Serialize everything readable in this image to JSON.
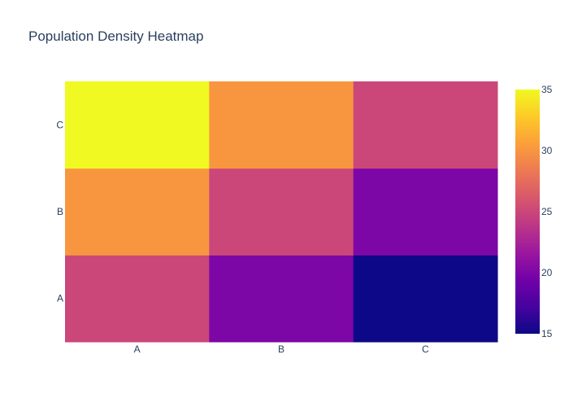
{
  "chart_data": {
    "type": "heatmap",
    "title": "Population Density Heatmap",
    "xlabel": "",
    "ylabel": "",
    "x": [
      "A",
      "B",
      "C"
    ],
    "y": [
      "A",
      "B",
      "C"
    ],
    "z": [
      [
        25,
        20,
        15
      ],
      [
        30,
        25,
        20
      ],
      [
        35,
        30,
        25
      ]
    ],
    "colorscale": [
      "#0d0887",
      "#46039f",
      "#7201a8",
      "#9c179e",
      "#bd3786",
      "#d8576b",
      "#ed7953",
      "#fb9f3a",
      "#fdca26",
      "#f0f921"
    ],
    "zmin": 15,
    "zmax": 35,
    "colorbar": {
      "ticks": [
        15,
        20,
        25,
        30,
        35
      ]
    },
    "grid": false,
    "legend": "none"
  }
}
